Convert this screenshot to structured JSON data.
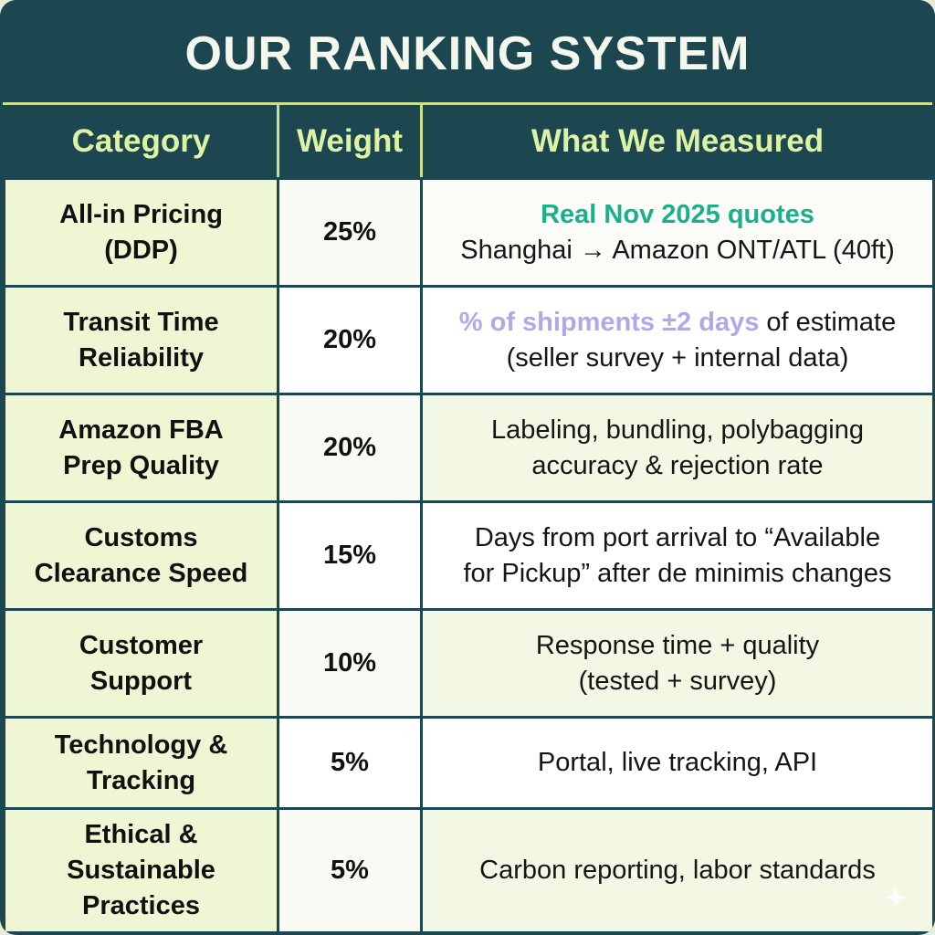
{
  "header": {
    "title": "OUR RANKING SYSTEM"
  },
  "table": {
    "columns": [
      "Category",
      "Weight",
      "What We Measured"
    ],
    "rows": [
      {
        "category": [
          "All-in Pricing",
          "(DDP)"
        ],
        "weight": "25%",
        "measured": {
          "highlight": "Real Nov 2025 quotes",
          "text": "Shanghai → Amazon ONT/ATL (40ft)"
        }
      },
      {
        "category": [
          "Transit Time",
          "Reliability"
        ],
        "weight": "20%",
        "measured": {
          "highlight": "% of shipments ±2 days",
          "text_after": " of estimate",
          "text2": "(seller survey + internal data)"
        }
      },
      {
        "category": [
          "Amazon FBA",
          "Prep Quality"
        ],
        "weight": "20%",
        "measured": {
          "line1": "Labeling, bundling, polybagging",
          "line2": "accuracy & rejection rate"
        }
      },
      {
        "category": [
          "Customs",
          "Clearance Speed"
        ],
        "weight": "15%",
        "measured": {
          "line1": "Days from port arrival to “Available",
          "line2": "for Pickup” after de minimis changes"
        }
      },
      {
        "category": [
          "Customer",
          "Support"
        ],
        "weight": "10%",
        "measured": {
          "line1": "Response time + quality",
          "line2": "(tested + survey)"
        }
      },
      {
        "category": [
          "Technology &",
          "Tracking"
        ],
        "weight": "5%",
        "measured": {
          "line1": "Portal, live tracking, API"
        }
      },
      {
        "category": [
          "Ethical &",
          "Sustainable",
          "Practices"
        ],
        "weight": "5%",
        "measured": {
          "line1": "Carbon reporting, labor standards"
        }
      }
    ]
  },
  "decor": {
    "corner_icon": "sparkle-icon"
  },
  "colors": {
    "navy": "#1c4650",
    "header_text": "#ddf2a4",
    "category_bg": "#eef6d4",
    "highlight_green": "#1ab08a",
    "highlight_purple": "#b5a6e6"
  }
}
